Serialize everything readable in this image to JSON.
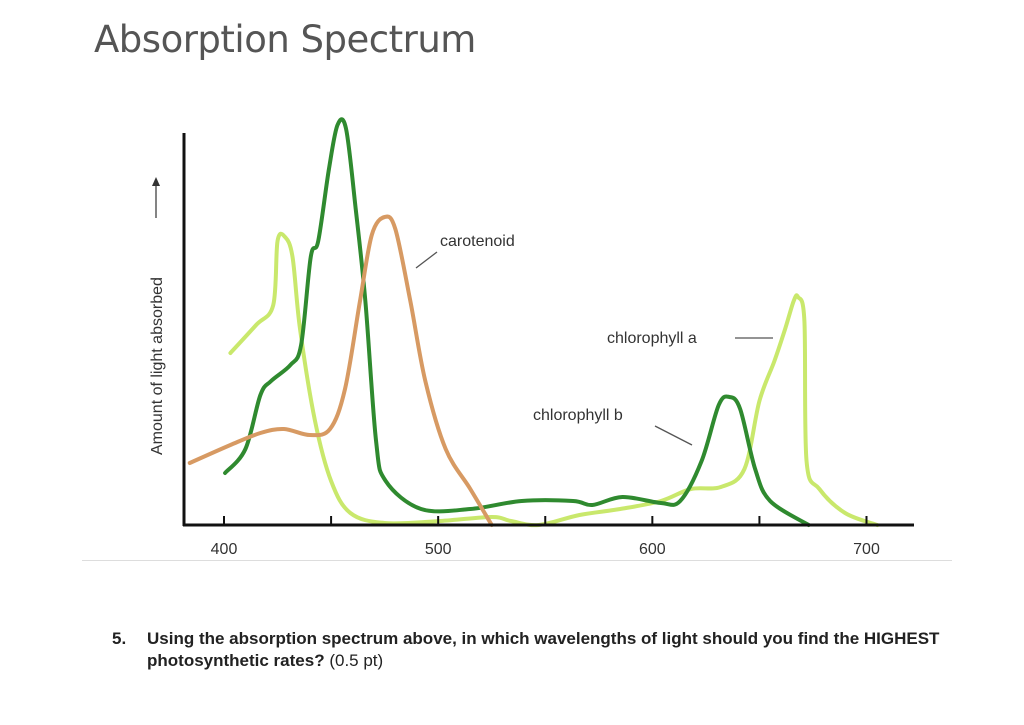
{
  "page_title": "Absorption Spectrum",
  "question": {
    "number": "5.",
    "text": "Using the absorption spectrum above, in which wavelengths of light should you find the HIGHEST photosynthetic rates?",
    "points": "(0.5 pt)"
  },
  "chart_data": {
    "type": "line",
    "title": "",
    "xlabel": "",
    "ylabel": "Amount of light absorbed",
    "xlim": [
      380,
      720
    ],
    "ylim": [
      0,
      100
    ],
    "x_ticks": [
      400,
      450,
      500,
      550,
      600,
      650,
      700
    ],
    "x_tick_labels": [
      "400",
      "500",
      "600",
      "700"
    ],
    "x_tick_label_values": [
      400,
      500,
      600,
      700
    ],
    "grid": false,
    "colors": {
      "chlorophyll a": "#c9e86c",
      "chlorophyll b": "#2f8a2f",
      "carotenoid": "#d79a63"
    },
    "series": [
      {
        "name": "chlorophyll a",
        "points": [
          [
            403,
            43
          ],
          [
            415,
            50
          ],
          [
            423,
            55
          ],
          [
            425,
            71
          ],
          [
            428.5,
            72
          ],
          [
            432,
            67
          ],
          [
            435.5,
            49
          ],
          [
            442.5,
            26
          ],
          [
            450,
            11
          ],
          [
            459,
            3
          ],
          [
            475,
            0.5
          ],
          [
            501,
            1
          ],
          [
            525,
            2
          ],
          [
            534,
            1
          ],
          [
            547,
            0
          ],
          [
            566,
            2.5
          ],
          [
            585,
            4
          ],
          [
            604,
            6
          ],
          [
            618,
            9
          ],
          [
            632,
            9.5
          ],
          [
            643,
            14
          ],
          [
            650,
            31
          ],
          [
            657,
            41
          ],
          [
            662,
            49
          ],
          [
            666,
            56
          ],
          [
            668,
            57
          ],
          [
            671,
            51
          ],
          [
            672,
            16
          ],
          [
            678,
            9
          ],
          [
            690,
            3
          ],
          [
            705,
            0
          ]
        ]
      },
      {
        "name": "chlorophyll b",
        "points": [
          [
            400.5,
            13
          ],
          [
            410,
            19
          ],
          [
            417,
            32.5
          ],
          [
            422,
            36
          ],
          [
            431,
            40
          ],
          [
            436,
            45
          ],
          [
            440.5,
            67
          ],
          [
            444,
            71
          ],
          [
            449,
            89
          ],
          [
            453,
            100
          ],
          [
            457,
            99
          ],
          [
            461.5,
            79
          ],
          [
            466,
            56
          ],
          [
            471,
            21
          ],
          [
            475.5,
            11
          ],
          [
            492,
            4
          ],
          [
            515,
            4
          ],
          [
            539,
            6
          ],
          [
            563,
            6
          ],
          [
            572,
            5
          ],
          [
            586,
            7
          ],
          [
            604,
            5.5
          ],
          [
            613,
            6
          ],
          [
            623,
            16
          ],
          [
            631,
            30
          ],
          [
            636,
            32
          ],
          [
            641,
            29
          ],
          [
            648,
            14
          ],
          [
            655,
            6
          ],
          [
            673,
            0
          ]
        ]
      },
      {
        "name": "carotenoid",
        "points": [
          [
            384,
            15.5
          ],
          [
            403,
            20
          ],
          [
            417,
            23
          ],
          [
            428,
            24
          ],
          [
            440,
            22.5
          ],
          [
            449.5,
            24
          ],
          [
            456.5,
            34
          ],
          [
            463.5,
            56
          ],
          [
            469,
            72.5
          ],
          [
            475,
            77
          ],
          [
            480,
            74
          ],
          [
            487,
            56
          ],
          [
            494,
            36
          ],
          [
            503.5,
            19
          ],
          [
            515,
            9
          ],
          [
            525,
            0
          ]
        ]
      }
    ]
  }
}
